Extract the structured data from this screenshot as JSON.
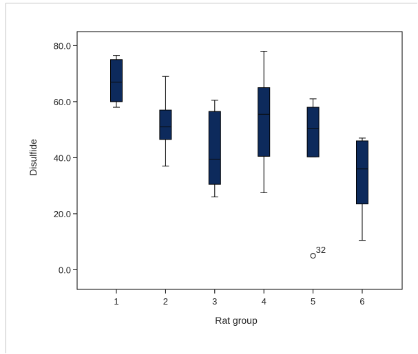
{
  "chart_data": {
    "type": "box",
    "title": "",
    "xlabel": "Rat group",
    "ylabel": "Disulfide",
    "ylim": [
      -7,
      85
    ],
    "yticks": [
      0,
      20,
      40,
      60,
      80
    ],
    "ytick_labels": [
      "0.0",
      "20.0",
      "40.0",
      "60.0",
      "80.0"
    ],
    "categories": [
      "1",
      "2",
      "3",
      "4",
      "5",
      "6"
    ],
    "box_color": "#0d2a5c",
    "series": [
      {
        "category": "1",
        "whisker_low": 58.0,
        "q1": 60.0,
        "median": 67.0,
        "q3": 75.0,
        "whisker_high": 76.5
      },
      {
        "category": "2",
        "whisker_low": 37.0,
        "q1": 46.5,
        "median": 51.0,
        "q3": 57.0,
        "whisker_high": 69.0
      },
      {
        "category": "3",
        "whisker_low": 26.0,
        "q1": 30.5,
        "median": 39.5,
        "q3": 56.5,
        "whisker_high": 60.5
      },
      {
        "category": "4",
        "whisker_low": 27.5,
        "q1": 40.5,
        "median": 55.5,
        "q3": 65.0,
        "whisker_high": 78.0
      },
      {
        "category": "5",
        "whisker_low": 40.3,
        "q1": 40.3,
        "median": 50.5,
        "q3": 58.0,
        "whisker_high": 61.0
      },
      {
        "category": "6",
        "whisker_low": 10.5,
        "q1": 23.5,
        "median": 36.0,
        "q3": 46.0,
        "whisker_high": 47.0
      }
    ],
    "outliers": [
      {
        "category": "5",
        "value": 5.0,
        "label": "32"
      }
    ]
  }
}
